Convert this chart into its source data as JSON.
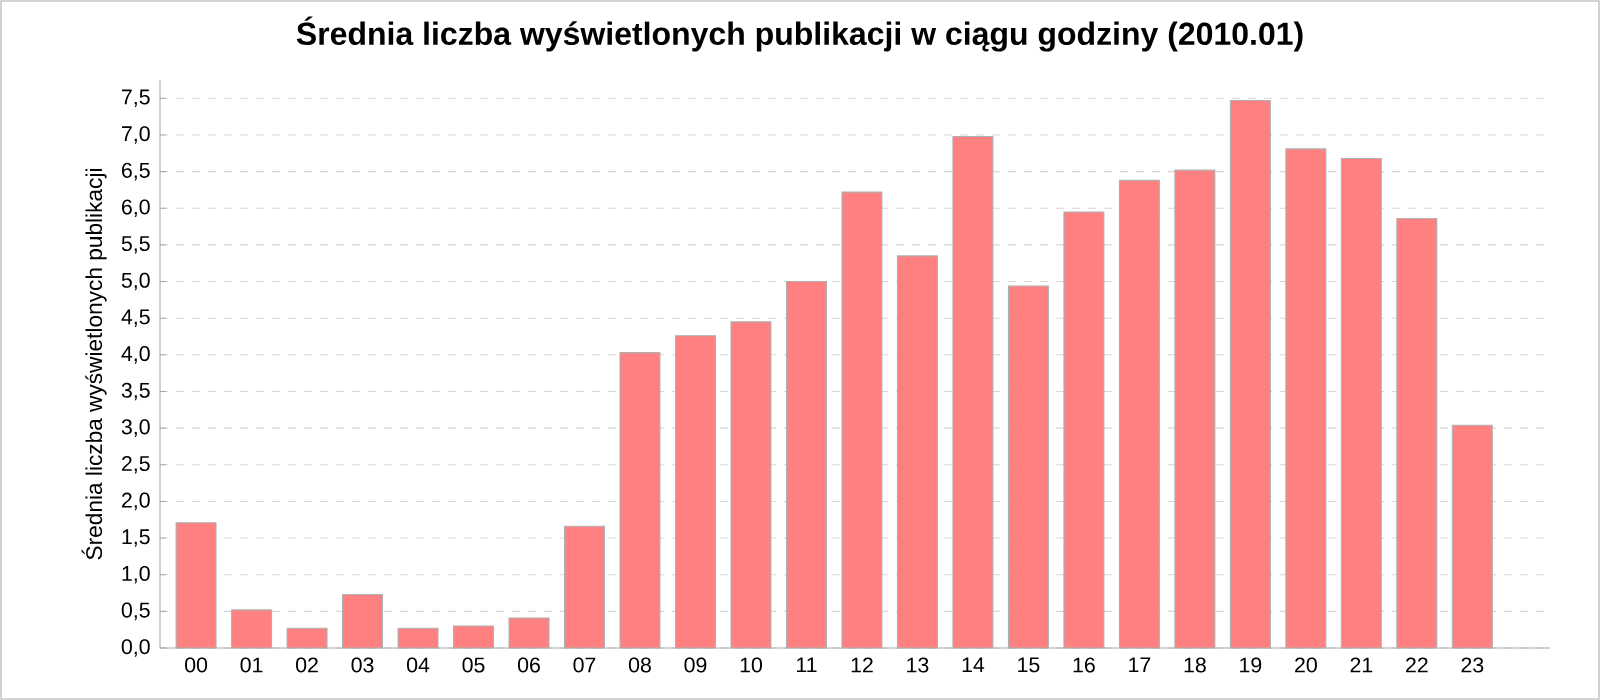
{
  "chart_data": {
    "type": "bar",
    "title": "Średnia liczba wyświetlonych publikacji w ciągu godziny (2010.01)",
    "ylabel": "Średnia liczba wyświetlonych publikacji",
    "categories": [
      "00",
      "01",
      "02",
      "03",
      "04",
      "05",
      "06",
      "07",
      "08",
      "09",
      "10",
      "11",
      "12",
      "13",
      "14",
      "15",
      "16",
      "17",
      "18",
      "19",
      "20",
      "21",
      "22",
      "23"
    ],
    "values": [
      1.71,
      0.52,
      0.27,
      0.73,
      0.27,
      0.3,
      0.41,
      1.66,
      4.03,
      4.26,
      4.45,
      5.0,
      6.22,
      5.35,
      6.98,
      4.94,
      5.95,
      6.38,
      6.52,
      7.47,
      6.81,
      6.68,
      5.86,
      3.04
    ],
    "color": "#ff8080",
    "ylim": [
      0,
      7.75
    ],
    "yticks": [
      {
        "value": 0,
        "label": "0,0"
      },
      {
        "value": 0.5,
        "label": "0,5"
      },
      {
        "value": 1,
        "label": "1,0"
      },
      {
        "value": 1.5,
        "label": "1,5"
      },
      {
        "value": 2,
        "label": "2,0"
      },
      {
        "value": 2.5,
        "label": "2,5"
      },
      {
        "value": 3,
        "label": "3,0"
      },
      {
        "value": 3.5,
        "label": "3,5"
      },
      {
        "value": 4,
        "label": "4,0"
      },
      {
        "value": 4.5,
        "label": "4,5"
      },
      {
        "value": 5,
        "label": "5,0"
      },
      {
        "value": 5.5,
        "label": "5,5"
      },
      {
        "value": 6,
        "label": "6,0"
      },
      {
        "value": 6.5,
        "label": "6,5"
      },
      {
        "value": 7,
        "label": "7,0"
      },
      {
        "value": 7.5,
        "label": "7,5"
      }
    ],
    "grid": "y"
  }
}
